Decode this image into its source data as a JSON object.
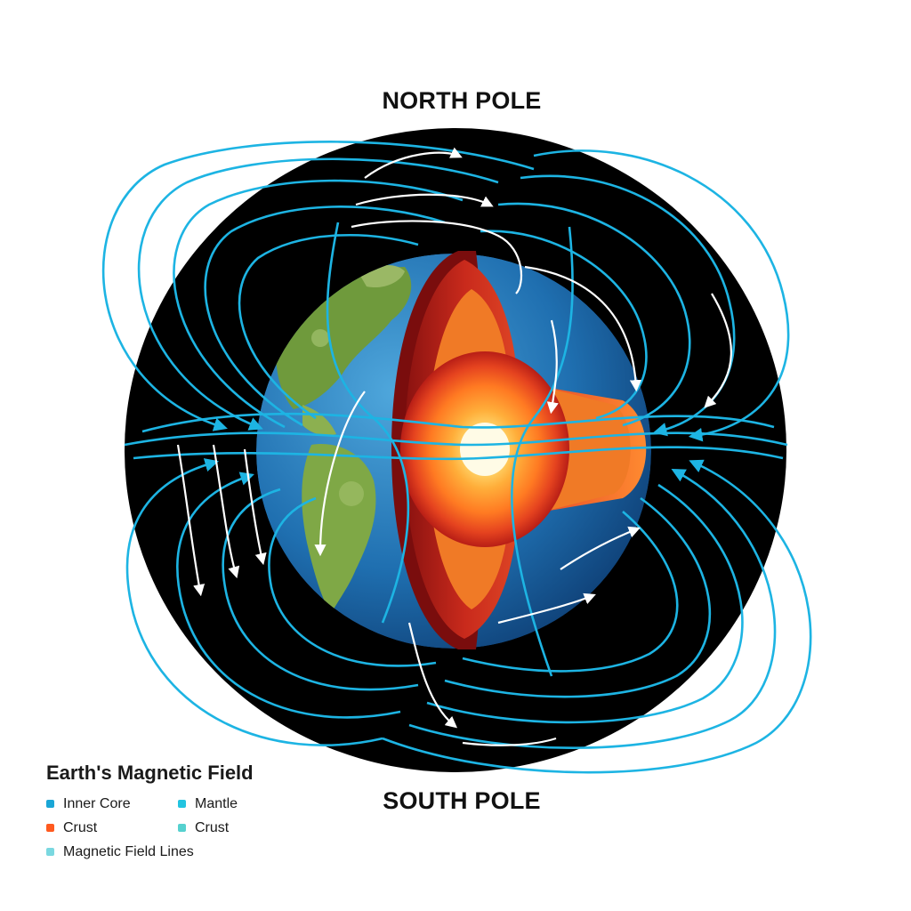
{
  "labels": {
    "north": "NORTH POLE",
    "south": "SOUTH POLE"
  },
  "legend": {
    "title": "Earth's Magnetic Field",
    "items": [
      {
        "label": "Inner Core",
        "color": "#1aa6d6"
      },
      {
        "label": "Mantle",
        "color": "#22c4e0"
      },
      {
        "label": "Crust",
        "color": "#ff5a1f"
      },
      {
        "label": "Crust",
        "color": "#56d1cf"
      },
      {
        "label": "Magnetic Field Lines",
        "color": "#7ad8e0"
      }
    ]
  },
  "colors": {
    "field_line": "#1db4e3",
    "field_line_white": "#ffffff",
    "space": "#000000",
    "ocean": "#1f6fb0",
    "land": "#6f9a3c",
    "core_hot": "#fff3a0",
    "core_mid": "#ff9a2a",
    "mantle": "#d2321e",
    "crust_edge": "#7a0d0d"
  }
}
